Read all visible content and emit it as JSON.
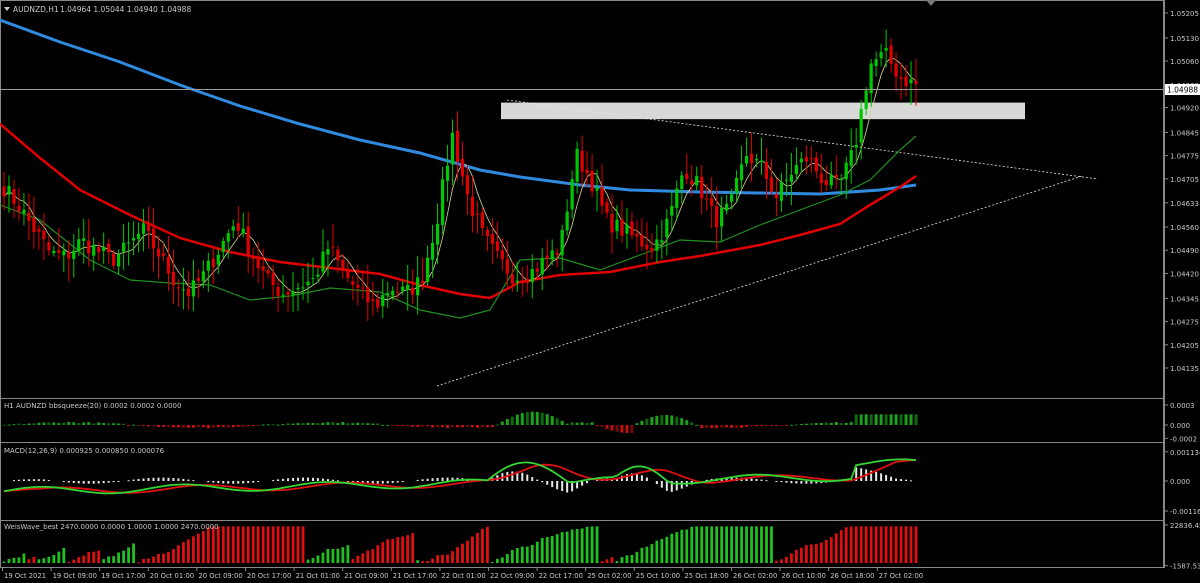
{
  "header": {
    "symbol": "AUDNZD,H1",
    "ohlc": "1.04964 1.05044 1.04940 1.04988",
    "current_price_label": "1.04988"
  },
  "colors": {
    "background": "#000000",
    "bull_candle": "#00c800",
    "bear_candle": "#e00000",
    "ma200": "#2f8ae0",
    "ma50": "#e00000",
    "ma20": "#1f8f1f",
    "ma5": "#d8d890",
    "zone": "#d8d8d8",
    "macd_line": "#33d633",
    "macd_signal": "#e01010",
    "macd_hist": "#e8e8e8"
  },
  "chart_data": [
    {
      "type": "candlestick",
      "panel": "main",
      "symbol": "AUDNZD,H1",
      "y_axis_ticks": [
        "1.05205",
        "1.05130",
        "1.05060",
        "1.04988",
        "1.04920",
        "1.04845",
        "1.04775",
        "1.04705",
        "1.04633",
        "1.04560",
        "1.04490",
        "1.04420",
        "1.04345",
        "1.04275",
        "1.04205",
        "1.04135"
      ],
      "ylim": [
        1.04135,
        1.05205
      ],
      "x_axis_ticks": [
        "19 Oct 2021",
        "19 Oct 09:00",
        "19 Oct 17:00",
        "20 Oct 01:00",
        "20 Oct 09:00",
        "20 Oct 17:00",
        "21 Oct 01:00",
        "21 Oct 09:00",
        "21 Oct 17:00",
        "22 Oct 01:00",
        "22 Oct 09:00",
        "22 Oct 17:00",
        "25 Oct 02:00",
        "25 Oct 10:00",
        "25 Oct 18:00",
        "26 Oct 02:00",
        "26 Oct 10:00",
        "26 Oct 18:00",
        "27 Oct 02:00"
      ],
      "close_path": [
        1.0468,
        1.0462,
        1.0455,
        1.0448,
        1.0447,
        1.0452,
        1.0449,
        1.0446,
        1.045,
        1.0455,
        1.0448,
        1.044,
        1.0436,
        1.0442,
        1.045,
        1.0458,
        1.0448,
        1.044,
        1.0436,
        1.0438,
        1.044,
        1.045,
        1.0442,
        1.0436,
        1.0432,
        1.0438,
        1.0436,
        1.044,
        1.0458,
        1.0484,
        1.0465,
        1.0453,
        1.0446,
        1.0441,
        1.0442,
        1.0446,
        1.045,
        1.0478,
        1.047,
        1.0458,
        1.0455,
        1.0452,
        1.045,
        1.0458,
        1.0474,
        1.0468,
        1.0458,
        1.0462,
        1.0478,
        1.0474,
        1.0465,
        1.0473,
        1.0477,
        1.047,
        1.0468,
        1.0479,
        1.0505,
        1.0508,
        1.0501,
        1.0499
      ],
      "indicators": [
        "MA 200 (blue)",
        "MA 50 (red)",
        "MA 20 (green)",
        "MA 5 (light)"
      ],
      "zone": {
        "from": 1.04885,
        "to": 1.04935
      }
    },
    {
      "type": "bar",
      "panel": "bbsqueeze",
      "label": "H1 AUDNZD bbsqueeze(20) 0.0002 0.0002 0.0000",
      "y_axis_ticks": [
        "0.0003",
        "0.000",
        "-0.0002"
      ],
      "ylim": [
        -0.0002,
        0.0003
      ]
    },
    {
      "type": "line",
      "panel": "macd",
      "label": "MACD(12,26,9) 0.000925 0.000850 0.000076",
      "y_axis_ticks": [
        "0.001134",
        "0.000",
        "-0.001164"
      ],
      "ylim": [
        -0.001164,
        0.001134
      ]
    },
    {
      "type": "bar",
      "panel": "weiswave",
      "label": "WeisWave_best 2470.0000 0.0000 1.0000 1.0000 2470.0000",
      "y_axis_ticks": [
        "22836.45",
        "-1587.53"
      ],
      "ylim": [
        -1587.53,
        22836.45
      ]
    }
  ]
}
